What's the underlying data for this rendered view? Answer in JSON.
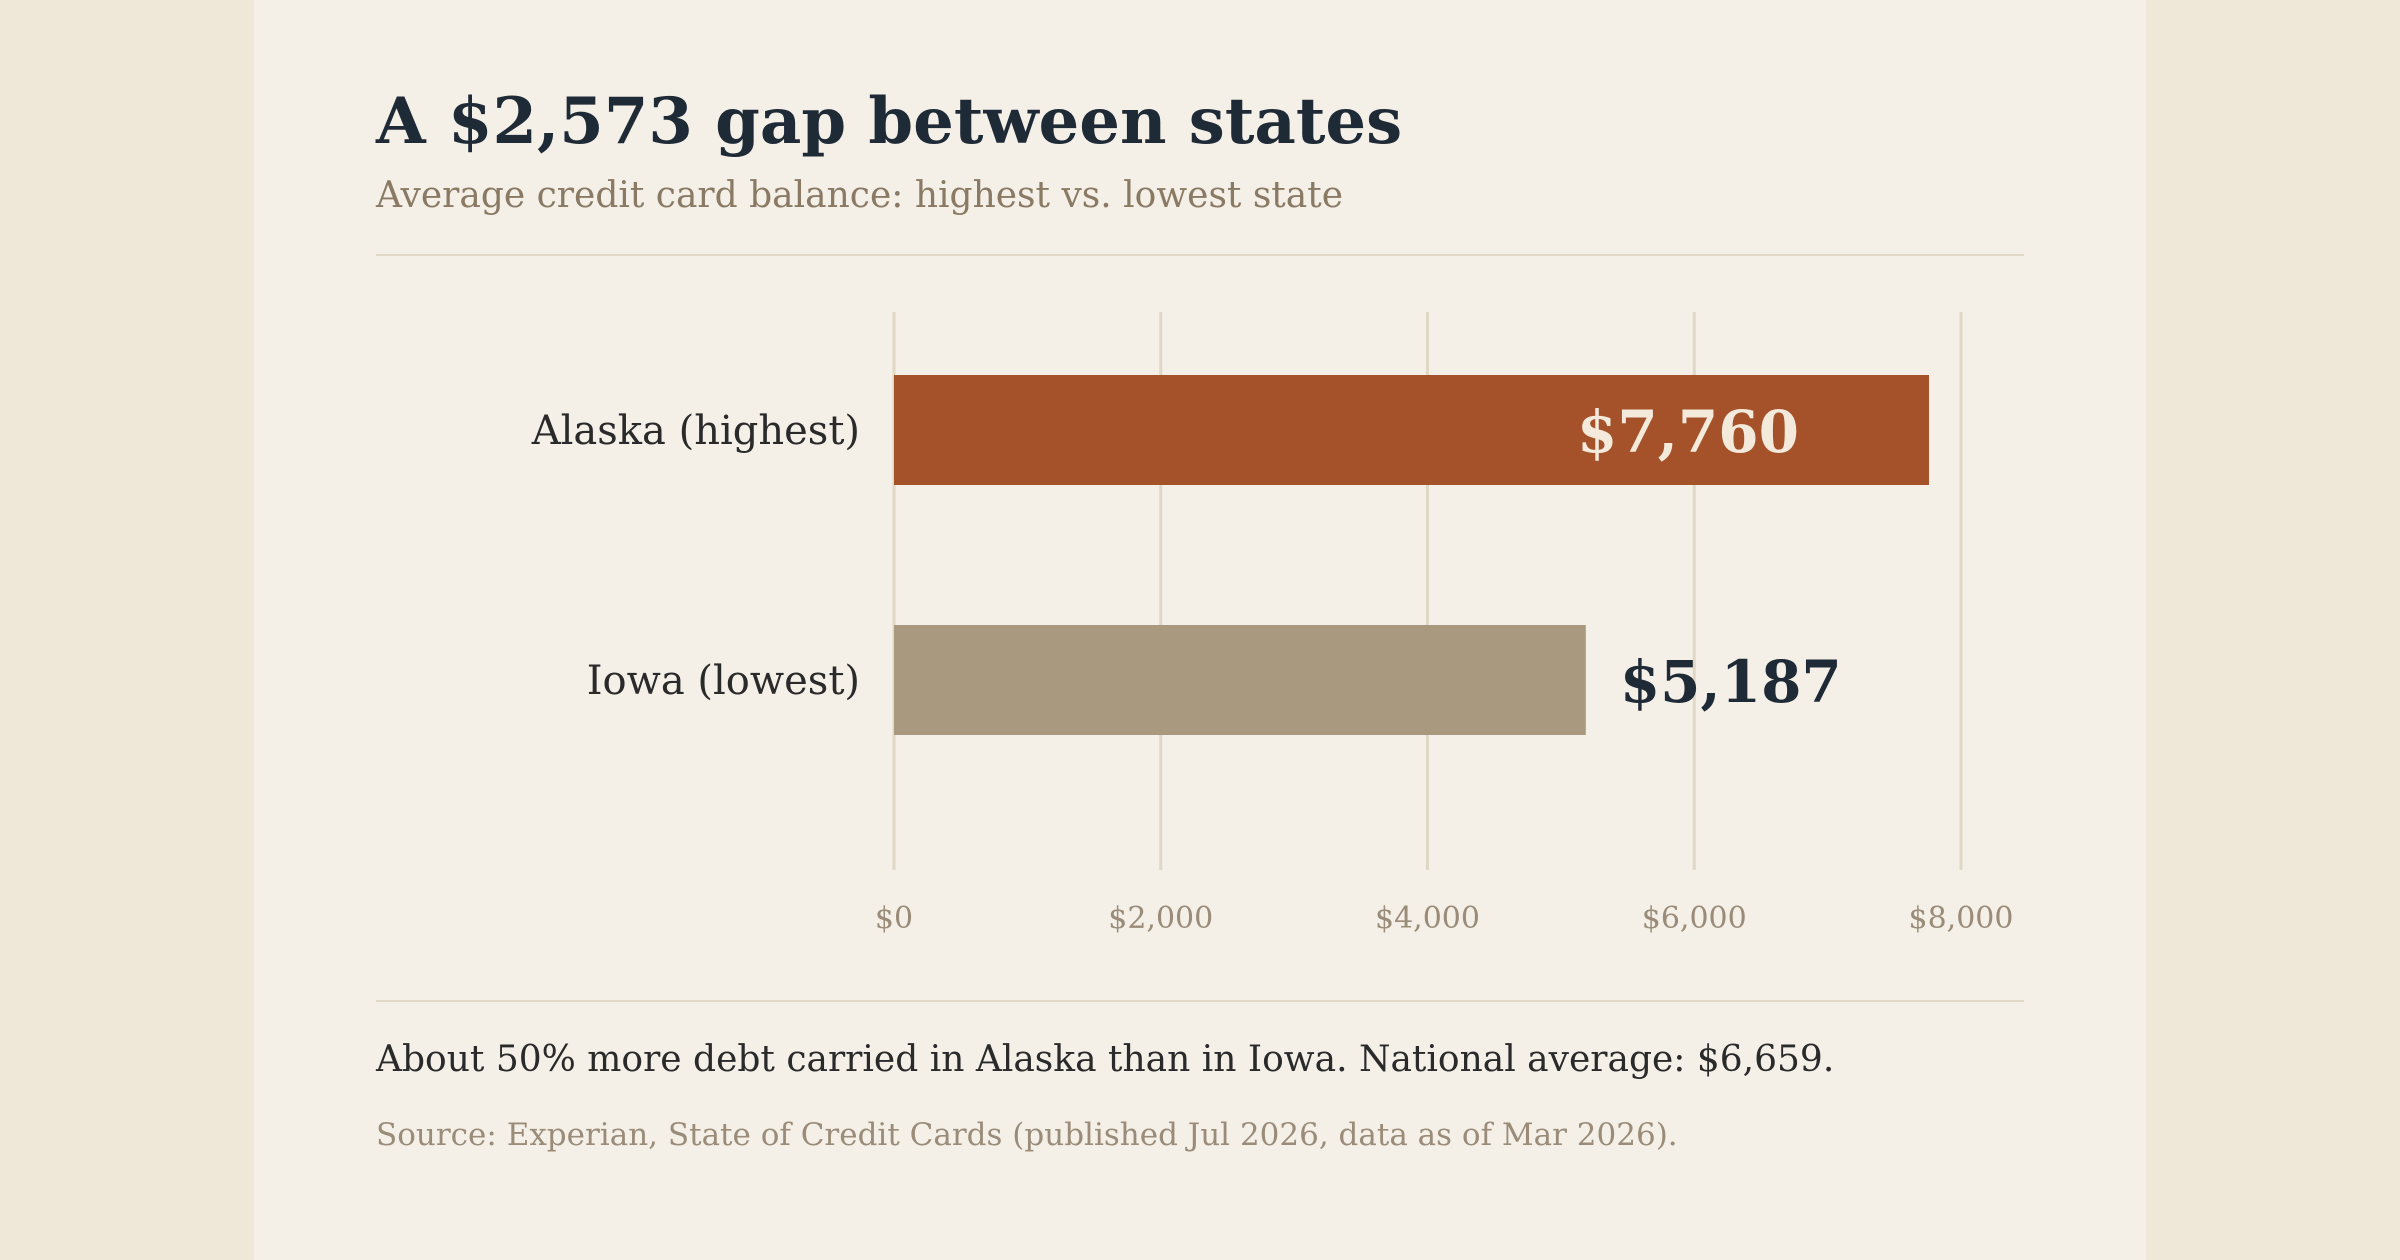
{
  "header": {
    "title": "A $2,573 gap between states",
    "subtitle": "Average credit card balance: highest vs. lowest state"
  },
  "chart_data": {
    "type": "bar",
    "orientation": "horizontal",
    "categories": [
      "Alaska (highest)",
      "Iowa (lowest)"
    ],
    "values": [
      7760,
      5187
    ],
    "value_labels": [
      "$7,760",
      "$5,187"
    ],
    "xlim": [
      0,
      8000
    ],
    "x_ticks": [
      0,
      2000,
      4000,
      6000,
      8000
    ],
    "x_tick_labels": [
      "$0",
      "$2,000",
      "$4,000",
      "$6,000",
      "$8,000"
    ],
    "grid": true,
    "bar_colors": [
      "#a5522a",
      "#a99a7f"
    ],
    "label_colors": [
      "#f4eadc",
      "#1f2a37"
    ],
    "label_positions": [
      "inside",
      "outside"
    ]
  },
  "footer": {
    "note": "About 50% more debt carried in Alaska than in Iowa. National average: $6,659.",
    "source": "Source: Experian, State of Credit Cards (published Jul 2026, data as of Mar 2026)."
  },
  "colors": {
    "page_background": "#efe8d9",
    "card_background": "#f4f0e8",
    "title": "#1f2a37",
    "muted": "#8a7a64",
    "gridline": "#e0d8c4"
  }
}
